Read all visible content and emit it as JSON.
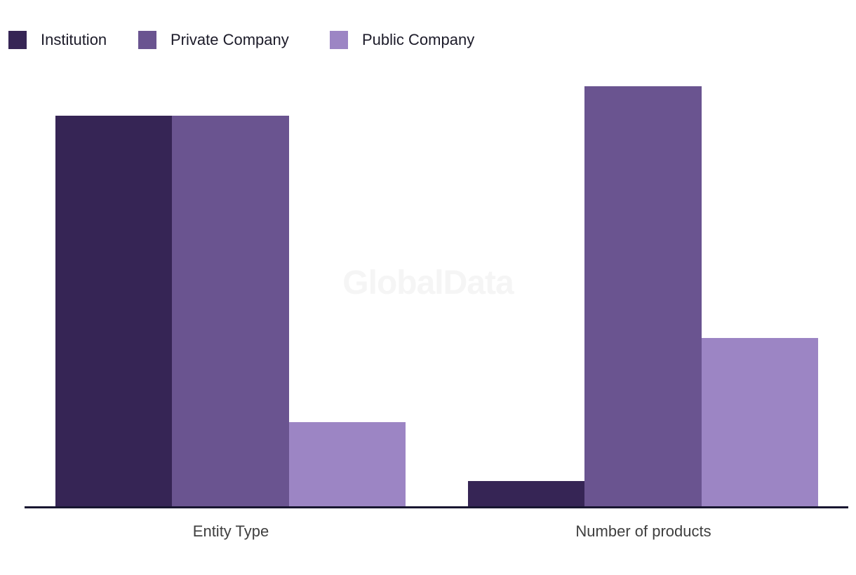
{
  "chart_data": {
    "type": "bar",
    "title": "",
    "categories": [
      "Entity Type",
      "Number of products"
    ],
    "series": [
      {
        "name": "Institution",
        "color": "#362555",
        "values": [
          93,
          6
        ]
      },
      {
        "name": "Private Company",
        "color": "#6A5490",
        "values": [
          93,
          100
        ]
      },
      {
        "name": "Public Company",
        "color": "#9C85C4",
        "values": [
          20,
          40
        ]
      }
    ],
    "ylim": [
      0,
      100
    ],
    "y_axis": "hidden",
    "grid": false,
    "legend_position": "top-left",
    "watermark": "GlobalData",
    "colors": {
      "background": "#ffffff",
      "axis_line": "#181631",
      "axis_label_text": "#3f3f3f",
      "legend_text": "#1c1b29",
      "watermark_text": "#f5f5f5"
    }
  }
}
